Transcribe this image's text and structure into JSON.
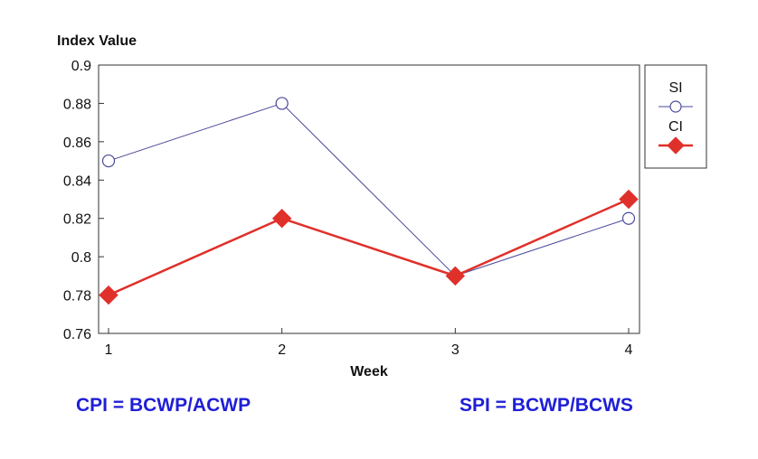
{
  "chart_data": {
    "type": "line",
    "title": "",
    "ylabel": "Index Value",
    "xlabel": "Week",
    "x": [
      1,
      2,
      3,
      4
    ],
    "xlim": [
      1,
      4
    ],
    "ylim": [
      0.76,
      0.9
    ],
    "yticks": [
      "0.76",
      "0.78",
      "0.8",
      "0.82",
      "0.84",
      "0.86",
      "0.88",
      "0.9"
    ],
    "xticks": [
      "1",
      "2",
      "3",
      "4"
    ],
    "grid": false,
    "legend": "right",
    "series": [
      {
        "name": "SI",
        "values": [
          0.85,
          0.88,
          0.79,
          0.82
        ],
        "color": "#4a4a9a",
        "marker": "open-circle"
      },
      {
        "name": "CI",
        "values": [
          0.78,
          0.82,
          0.79,
          0.83
        ],
        "color": "#e0302a",
        "marker": "filled-diamond"
      }
    ]
  },
  "formulas": {
    "cpi": "CPI = BCWP/ACWP",
    "spi": "SPI = BCWP/BCWS"
  },
  "colors": {
    "formula": "#1f1fd6"
  }
}
